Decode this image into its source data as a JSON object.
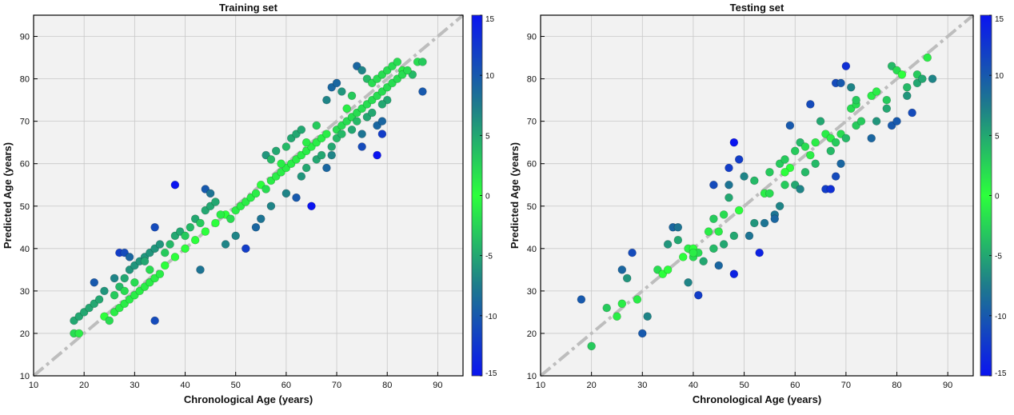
{
  "colors": {
    "plot_bg": "#f2f2f2",
    "grid": "#c8c8c8",
    "identity_line": "#bdbdbd",
    "colormap": [
      "#0a14f0",
      "#17c25c",
      "#2cff3c",
      "#17c25c",
      "#0a14f0"
    ],
    "colormap_mid": "#1e7b8c"
  },
  "chart_data": [
    {
      "type": "scatter",
      "title": "Training set",
      "xlabel": "Chronological Age (years)",
      "ylabel": "Predicted Age (years)",
      "xlim": [
        10,
        95
      ],
      "ylim": [
        10,
        95
      ],
      "xticks": [
        "10",
        "20",
        "30",
        "40",
        "50",
        "60",
        "70",
        "80",
        "90"
      ],
      "yticks": [
        "10",
        "20",
        "30",
        "40",
        "50",
        "60",
        "70",
        "80",
        "90"
      ],
      "grid": true,
      "identity_line": "dashed",
      "colorbar": {
        "range": [
          -15,
          15
        ],
        "ticks": [
          "15",
          "10",
          "5",
          "0",
          "-5",
          "-10",
          "-15"
        ]
      },
      "points": [
        [
          18,
          20
        ],
        [
          19,
          20
        ],
        [
          18,
          23
        ],
        [
          19,
          24
        ],
        [
          20,
          25
        ],
        [
          21,
          26
        ],
        [
          22,
          27
        ],
        [
          23,
          28
        ],
        [
          24,
          24
        ],
        [
          25,
          23
        ],
        [
          26,
          25
        ],
        [
          27,
          26
        ],
        [
          28,
          27
        ],
        [
          29,
          28
        ],
        [
          30,
          29
        ],
        [
          31,
          30
        ],
        [
          32,
          31
        ],
        [
          33,
          32
        ],
        [
          34,
          33
        ],
        [
          35,
          34
        ],
        [
          26,
          29
        ],
        [
          27,
          31
        ],
        [
          28,
          33
        ],
        [
          29,
          35
        ],
        [
          30,
          36
        ],
        [
          31,
          37
        ],
        [
          32,
          38
        ],
        [
          33,
          39
        ],
        [
          34,
          40
        ],
        [
          35,
          41
        ],
        [
          27,
          39
        ],
        [
          28,
          39
        ],
        [
          29,
          38
        ],
        [
          32,
          37
        ],
        [
          34,
          45
        ],
        [
          36,
          39
        ],
        [
          34,
          23
        ],
        [
          22,
          32
        ],
        [
          24,
          30
        ],
        [
          26,
          33
        ],
        [
          28,
          30
        ],
        [
          30,
          32
        ],
        [
          33,
          35
        ],
        [
          36,
          36
        ],
        [
          38,
          38
        ],
        [
          40,
          40
        ],
        [
          42,
          42
        ],
        [
          44,
          44
        ],
        [
          46,
          46
        ],
        [
          48,
          48
        ],
        [
          37,
          41
        ],
        [
          38,
          43
        ],
        [
          39,
          44
        ],
        [
          40,
          43
        ],
        [
          41,
          45
        ],
        [
          42,
          47
        ],
        [
          43,
          46
        ],
        [
          44,
          49
        ],
        [
          45,
          50
        ],
        [
          46,
          51
        ],
        [
          38,
          55
        ],
        [
          43,
          35
        ],
        [
          44,
          54
        ],
        [
          45,
          53
        ],
        [
          47,
          48
        ],
        [
          49,
          47
        ],
        [
          50,
          49
        ],
        [
          51,
          50
        ],
        [
          52,
          51
        ],
        [
          53,
          52
        ],
        [
          48,
          41
        ],
        [
          50,
          43
        ],
        [
          52,
          40
        ],
        [
          54,
          45
        ],
        [
          55,
          47
        ],
        [
          54,
          53
        ],
        [
          55,
          55
        ],
        [
          56,
          54
        ],
        [
          57,
          56
        ],
        [
          58,
          57
        ],
        [
          59,
          58
        ],
        [
          60,
          59
        ],
        [
          61,
          60
        ],
        [
          62,
          61
        ],
        [
          63,
          62
        ],
        [
          64,
          63
        ],
        [
          65,
          64
        ],
        [
          66,
          65
        ],
        [
          67,
          66
        ],
        [
          68,
          67
        ],
        [
          57,
          50
        ],
        [
          60,
          53
        ],
        [
          62,
          52
        ],
        [
          65,
          50
        ],
        [
          63,
          57
        ],
        [
          64,
          59
        ],
        [
          66,
          61
        ],
        [
          67,
          62
        ],
        [
          68,
          59
        ],
        [
          69,
          62
        ],
        [
          70,
          68
        ],
        [
          71,
          69
        ],
        [
          72,
          70
        ],
        [
          73,
          71
        ],
        [
          74,
          72
        ],
        [
          75,
          73
        ],
        [
          76,
          74
        ],
        [
          77,
          75
        ],
        [
          78,
          76
        ],
        [
          79,
          77
        ],
        [
          69,
          64
        ],
        [
          70,
          66
        ],
        [
          71,
          67
        ],
        [
          73,
          68
        ],
        [
          74,
          70
        ],
        [
          75,
          67
        ],
        [
          76,
          71
        ],
        [
          77,
          72
        ],
        [
          78,
          69
        ],
        [
          80,
          75
        ],
        [
          68,
          75
        ],
        [
          69,
          78
        ],
        [
          70,
          79
        ],
        [
          71,
          77
        ],
        [
          72,
          73
        ],
        [
          73,
          76
        ],
        [
          74,
          83
        ],
        [
          75,
          82
        ],
        [
          76,
          80
        ],
        [
          77,
          79
        ],
        [
          78,
          80
        ],
        [
          79,
          81
        ],
        [
          80,
          82
        ],
        [
          81,
          83
        ],
        [
          82,
          84
        ],
        [
          83,
          82
        ],
        [
          85,
          81
        ],
        [
          86,
          84
        ],
        [
          87,
          84
        ],
        [
          87,
          77
        ],
        [
          75,
          64
        ],
        [
          78,
          62
        ],
        [
          79,
          70
        ],
        [
          79,
          67
        ],
        [
          80,
          78
        ],
        [
          81,
          79
        ],
        [
          82,
          80
        ],
        [
          83,
          81
        ],
        [
          84,
          82
        ],
        [
          79,
          74
        ],
        [
          56,
          62
        ],
        [
          57,
          61
        ],
        [
          58,
          63
        ],
        [
          59,
          60
        ],
        [
          60,
          64
        ],
        [
          61,
          66
        ],
        [
          62,
          67
        ],
        [
          63,
          68
        ],
        [
          64,
          65
        ],
        [
          66,
          69
        ]
      ]
    },
    {
      "type": "scatter",
      "title": "Testing set",
      "xlabel": "Chronological Age (years)",
      "ylabel": "Predicted Age (years)",
      "xlim": [
        10,
        95
      ],
      "ylim": [
        10,
        95
      ],
      "xticks": [
        "10",
        "20",
        "30",
        "40",
        "50",
        "60",
        "70",
        "80",
        "90"
      ],
      "yticks": [
        "10",
        "20",
        "30",
        "40",
        "50",
        "60",
        "70",
        "80",
        "90"
      ],
      "grid": true,
      "identity_line": "dashed",
      "colorbar": {
        "range": [
          -15,
          15
        ],
        "ticks": [
          "15",
          "10",
          "5",
          "0",
          "-5",
          "-10",
          "-15"
        ]
      },
      "points": [
        [
          18,
          28
        ],
        [
          20,
          17
        ],
        [
          23,
          26
        ],
        [
          25,
          24
        ],
        [
          26,
          27
        ],
        [
          26,
          35
        ],
        [
          27,
          33
        ],
        [
          28,
          39
        ],
        [
          29,
          28
        ],
        [
          30,
          20
        ],
        [
          31,
          24
        ],
        [
          33,
          35
        ],
        [
          34,
          34
        ],
        [
          35,
          35
        ],
        [
          35,
          41
        ],
        [
          36,
          45
        ],
        [
          37,
          45
        ],
        [
          37,
          42
        ],
        [
          38,
          38
        ],
        [
          39,
          32
        ],
        [
          39,
          40
        ],
        [
          40,
          40
        ],
        [
          40,
          38
        ],
        [
          41,
          29
        ],
        [
          41,
          39
        ],
        [
          42,
          37
        ],
        [
          43,
          44
        ],
        [
          44,
          40
        ],
        [
          44,
          47
        ],
        [
          44,
          55
        ],
        [
          45,
          36
        ],
        [
          46,
          41
        ],
        [
          46,
          48
        ],
        [
          47,
          52
        ],
        [
          47,
          55
        ],
        [
          47,
          59
        ],
        [
          48,
          34
        ],
        [
          48,
          43
        ],
        [
          48,
          65
        ],
        [
          49,
          49
        ],
        [
          49,
          61
        ],
        [
          50,
          57
        ],
        [
          51,
          43
        ],
        [
          52,
          46
        ],
        [
          53,
          39
        ],
        [
          54,
          46
        ],
        [
          54,
          53
        ],
        [
          55,
          58
        ],
        [
          55,
          53
        ],
        [
          56,
          48
        ],
        [
          56,
          47
        ],
        [
          57,
          50
        ],
        [
          57,
          60
        ],
        [
          58,
          55
        ],
        [
          58,
          61
        ],
        [
          59,
          59
        ],
        [
          59,
          69
        ],
        [
          60,
          63
        ],
        [
          60,
          55
        ],
        [
          61,
          54
        ],
        [
          61,
          65
        ],
        [
          62,
          58
        ],
        [
          63,
          74
        ],
        [
          63,
          62
        ],
        [
          64,
          65
        ],
        [
          64,
          60
        ],
        [
          65,
          70
        ],
        [
          66,
          54
        ],
        [
          66,
          67
        ],
        [
          67,
          54
        ],
        [
          67,
          63
        ],
        [
          67,
          66
        ],
        [
          68,
          79
        ],
        [
          68,
          57
        ],
        [
          68,
          65
        ],
        [
          69,
          79
        ],
        [
          69,
          60
        ],
        [
          69,
          67
        ],
        [
          70,
          83
        ],
        [
          70,
          66
        ],
        [
          71,
          78
        ],
        [
          71,
          73
        ],
        [
          72,
          74
        ],
        [
          72,
          69
        ],
        [
          73,
          70
        ],
        [
          75,
          66
        ],
        [
          75,
          76
        ],
        [
          76,
          77
        ],
        [
          76,
          70
        ],
        [
          78,
          75
        ],
        [
          78,
          73
        ],
        [
          79,
          69
        ],
        [
          79,
          83
        ],
        [
          80,
          82
        ],
        [
          80,
          70
        ],
        [
          81,
          81
        ],
        [
          82,
          78
        ],
        [
          82,
          76
        ],
        [
          84,
          79
        ],
        [
          84,
          81
        ],
        [
          85,
          80
        ],
        [
          86,
          85
        ],
        [
          87,
          80
        ],
        [
          40,
          39
        ],
        [
          52,
          56
        ],
        [
          58,
          58
        ],
        [
          62,
          64
        ],
        [
          72,
          75
        ],
        [
          45,
          44
        ],
        [
          83,
          72
        ]
      ]
    }
  ]
}
